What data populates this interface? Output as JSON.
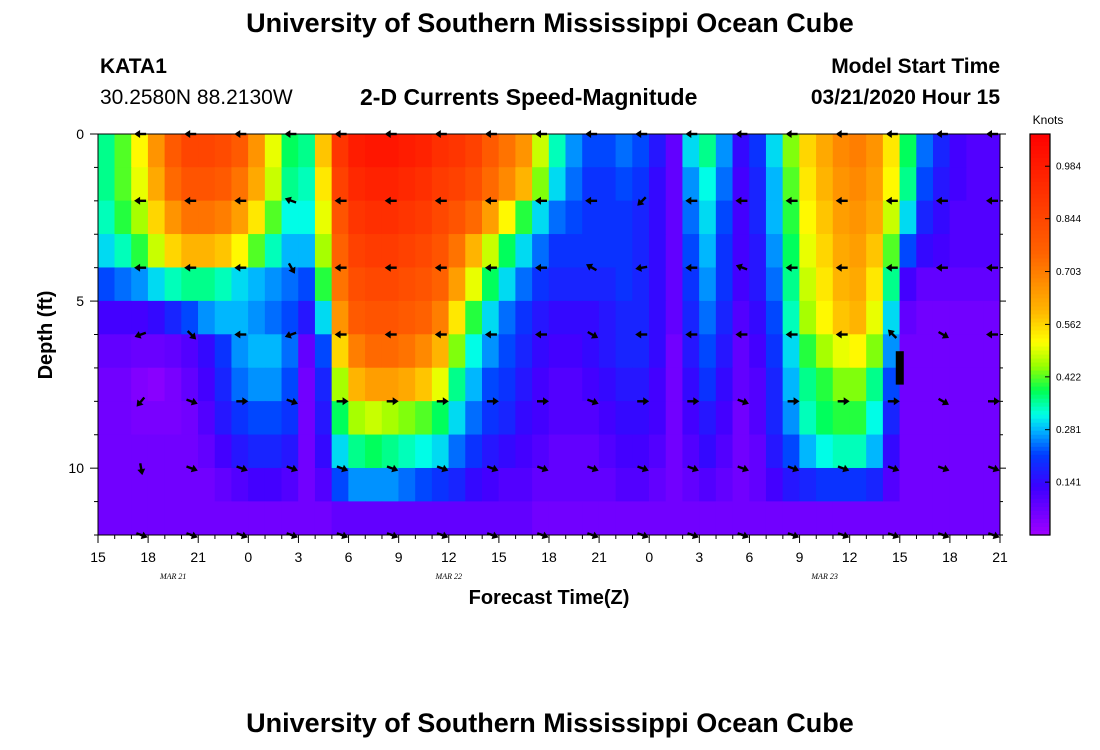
{
  "page": {
    "title_top": "University of Southern Mississippi Ocean Cube",
    "title_bottom": "University of Southern Mississippi Ocean Cube",
    "station": "KATA1",
    "coords": "30.2580N 88.2130W",
    "subtitle": "2-D Currents Speed-Magnitude",
    "model_start_label": "Model Start Time",
    "model_start_value": "03/21/2020 Hour 15"
  },
  "chart_data": {
    "type": "heatmap",
    "title": "2-D Currents Speed-Magnitude",
    "xlabel": "Forecast Time(Z)",
    "ylabel": "Depth (ft)",
    "x_range_hours": [
      0,
      54
    ],
    "y_range_ft": [
      0,
      12
    ],
    "x_ticks": [
      {
        "h": 0,
        "label": "15"
      },
      {
        "h": 3,
        "label": "18"
      },
      {
        "h": 6,
        "label": "21"
      },
      {
        "h": 9,
        "label": "0"
      },
      {
        "h": 12,
        "label": "3"
      },
      {
        "h": 15,
        "label": "6"
      },
      {
        "h": 18,
        "label": "9"
      },
      {
        "h": 21,
        "label": "12"
      },
      {
        "h": 24,
        "label": "15"
      },
      {
        "h": 27,
        "label": "18"
      },
      {
        "h": 30,
        "label": "21"
      },
      {
        "h": 33,
        "label": "0"
      },
      {
        "h": 36,
        "label": "3"
      },
      {
        "h": 39,
        "label": "6"
      },
      {
        "h": 42,
        "label": "9"
      },
      {
        "h": 45,
        "label": "12"
      },
      {
        "h": 48,
        "label": "15"
      },
      {
        "h": 51,
        "label": "18"
      },
      {
        "h": 54,
        "label": "21"
      }
    ],
    "date_labels": [
      {
        "h": 4.5,
        "label": "MAR 21"
      },
      {
        "h": 21,
        "label": "MAR 22"
      },
      {
        "h": 43.5,
        "label": "MAR 23"
      }
    ],
    "y_ticks": [
      {
        "v": 0,
        "label": "0"
      },
      {
        "v": 5,
        "label": "5"
      },
      {
        "v": 10,
        "label": "10"
      }
    ],
    "colorbar": {
      "title": "Knots",
      "range": [
        0.0,
        1.07
      ],
      "tick_values": [
        0.141,
        0.281,
        0.422,
        0.562,
        0.703,
        0.844,
        0.984
      ],
      "tick_labels": [
        "0.141",
        "0.281",
        "0.422",
        "0.562",
        "0.703",
        "0.844",
        "0.984"
      ]
    },
    "column_hours": [
      0,
      1,
      2,
      3,
      4,
      5,
      6,
      7,
      8,
      9,
      10,
      11,
      12,
      13,
      14,
      15,
      16,
      17,
      18,
      19,
      20,
      21,
      22,
      23,
      24,
      25,
      26,
      27,
      28,
      29,
      30,
      31,
      32,
      33,
      34,
      35,
      36,
      37,
      38,
      39,
      40,
      41,
      42,
      43,
      44,
      45,
      46,
      47,
      48,
      49,
      50,
      51,
      52,
      53
    ],
    "row_depths_ft": [
      0.5,
      1.5,
      2.5,
      3.5,
      4.5,
      5.5,
      6.5,
      7.5,
      8.5,
      9.5,
      10.5,
      11.5
    ],
    "speed_knots": [
      [
        0.36,
        0.42,
        0.52,
        0.66,
        0.78,
        0.85,
        0.85,
        0.83,
        0.78,
        0.66,
        0.5,
        0.38,
        0.36,
        0.58,
        0.9,
        0.98,
        1.0,
        1.0,
        0.98,
        0.96,
        0.92,
        0.9,
        0.86,
        0.78,
        0.72,
        0.66,
        0.48,
        0.34,
        0.26,
        0.22,
        0.22,
        0.24,
        0.22,
        0.16,
        0.08,
        0.3,
        0.36,
        0.26,
        0.14,
        0.2,
        0.3,
        0.44,
        0.56,
        0.62,
        0.68,
        0.7,
        0.66,
        0.54,
        0.38,
        0.24,
        0.18,
        0.12,
        0.1,
        0.1
      ],
      [
        0.36,
        0.42,
        0.5,
        0.62,
        0.74,
        0.8,
        0.8,
        0.78,
        0.72,
        0.62,
        0.48,
        0.36,
        0.34,
        0.54,
        0.86,
        0.94,
        0.96,
        0.96,
        0.94,
        0.92,
        0.88,
        0.86,
        0.82,
        0.74,
        0.68,
        0.6,
        0.44,
        0.3,
        0.24,
        0.2,
        0.2,
        0.22,
        0.2,
        0.14,
        0.08,
        0.26,
        0.32,
        0.24,
        0.12,
        0.18,
        0.28,
        0.42,
        0.54,
        0.6,
        0.66,
        0.68,
        0.64,
        0.52,
        0.36,
        0.22,
        0.16,
        0.12,
        0.1,
        0.1
      ],
      [
        0.34,
        0.4,
        0.46,
        0.56,
        0.66,
        0.72,
        0.72,
        0.7,
        0.64,
        0.54,
        0.42,
        0.32,
        0.32,
        0.5,
        0.8,
        0.9,
        0.92,
        0.92,
        0.9,
        0.88,
        0.84,
        0.8,
        0.74,
        0.64,
        0.52,
        0.4,
        0.3,
        0.24,
        0.22,
        0.2,
        0.2,
        0.2,
        0.18,
        0.14,
        0.08,
        0.24,
        0.3,
        0.22,
        0.12,
        0.18,
        0.28,
        0.4,
        0.52,
        0.58,
        0.64,
        0.66,
        0.62,
        0.48,
        0.3,
        0.18,
        0.14,
        0.1,
        0.1,
        0.1
      ],
      [
        0.3,
        0.34,
        0.4,
        0.48,
        0.56,
        0.6,
        0.6,
        0.58,
        0.52,
        0.42,
        0.34,
        0.28,
        0.28,
        0.46,
        0.76,
        0.86,
        0.88,
        0.88,
        0.86,
        0.84,
        0.8,
        0.72,
        0.6,
        0.48,
        0.38,
        0.3,
        0.24,
        0.2,
        0.2,
        0.2,
        0.2,
        0.2,
        0.18,
        0.14,
        0.08,
        0.22,
        0.28,
        0.2,
        0.12,
        0.16,
        0.26,
        0.38,
        0.5,
        0.56,
        0.62,
        0.64,
        0.58,
        0.42,
        0.22,
        0.14,
        0.12,
        0.1,
        0.1,
        0.1
      ],
      [
        0.22,
        0.24,
        0.26,
        0.3,
        0.34,
        0.36,
        0.36,
        0.34,
        0.3,
        0.28,
        0.26,
        0.24,
        0.22,
        0.4,
        0.72,
        0.82,
        0.84,
        0.84,
        0.82,
        0.8,
        0.76,
        0.64,
        0.5,
        0.38,
        0.3,
        0.24,
        0.2,
        0.18,
        0.18,
        0.18,
        0.18,
        0.2,
        0.18,
        0.14,
        0.08,
        0.2,
        0.26,
        0.2,
        0.12,
        0.16,
        0.24,
        0.36,
        0.48,
        0.54,
        0.6,
        0.62,
        0.54,
        0.36,
        0.12,
        0.08,
        0.08,
        0.08,
        0.08,
        0.08
      ],
      [
        0.12,
        0.12,
        0.12,
        0.14,
        0.18,
        0.22,
        0.26,
        0.28,
        0.28,
        0.26,
        0.24,
        0.22,
        0.16,
        0.3,
        0.66,
        0.78,
        0.8,
        0.8,
        0.78,
        0.76,
        0.7,
        0.54,
        0.4,
        0.3,
        0.24,
        0.2,
        0.16,
        0.14,
        0.14,
        0.14,
        0.16,
        0.18,
        0.18,
        0.14,
        0.08,
        0.18,
        0.24,
        0.18,
        0.1,
        0.14,
        0.22,
        0.34,
        0.46,
        0.52,
        0.58,
        0.6,
        0.5,
        0.3,
        0.08,
        0.06,
        0.06,
        0.06,
        0.06,
        0.06
      ],
      [
        0.08,
        0.08,
        0.07,
        0.07,
        0.08,
        0.1,
        0.14,
        0.2,
        0.26,
        0.28,
        0.28,
        0.24,
        0.08,
        0.22,
        0.56,
        0.7,
        0.74,
        0.74,
        0.72,
        0.68,
        0.6,
        0.44,
        0.32,
        0.26,
        0.22,
        0.18,
        0.14,
        0.12,
        0.12,
        0.14,
        0.16,
        0.18,
        0.18,
        0.14,
        0.06,
        0.16,
        0.22,
        0.16,
        0.08,
        0.12,
        0.2,
        0.3,
        0.4,
        0.46,
        0.5,
        0.52,
        0.44,
        0.26,
        0.06,
        0.06,
        0.06,
        0.06,
        0.06,
        0.06
      ],
      [
        0.06,
        0.06,
        0.04,
        0.03,
        0.05,
        0.08,
        0.12,
        0.18,
        0.24,
        0.26,
        0.26,
        0.22,
        0.06,
        0.18,
        0.46,
        0.6,
        0.64,
        0.64,
        0.62,
        0.58,
        0.5,
        0.36,
        0.28,
        0.22,
        0.2,
        0.16,
        0.12,
        0.1,
        0.1,
        0.12,
        0.14,
        0.16,
        0.16,
        0.12,
        0.06,
        0.14,
        0.2,
        0.14,
        0.08,
        0.1,
        0.18,
        0.28,
        0.36,
        0.4,
        0.44,
        0.44,
        0.36,
        0.22,
        0.06,
        0.06,
        0.06,
        0.06,
        0.06,
        0.06
      ],
      [
        0.06,
        0.06,
        0.05,
        0.05,
        0.05,
        0.06,
        0.1,
        0.16,
        0.2,
        0.22,
        0.22,
        0.2,
        0.06,
        0.16,
        0.38,
        0.46,
        0.48,
        0.46,
        0.44,
        0.42,
        0.38,
        0.3,
        0.24,
        0.2,
        0.18,
        0.14,
        0.12,
        0.1,
        0.1,
        0.1,
        0.12,
        0.14,
        0.14,
        0.12,
        0.06,
        0.12,
        0.16,
        0.12,
        0.06,
        0.1,
        0.18,
        0.26,
        0.34,
        0.38,
        0.4,
        0.4,
        0.32,
        0.18,
        0.06,
        0.06,
        0.06,
        0.06,
        0.06,
        0.06
      ],
      [
        0.06,
        0.06,
        0.06,
        0.06,
        0.06,
        0.06,
        0.08,
        0.12,
        0.16,
        0.18,
        0.18,
        0.16,
        0.06,
        0.14,
        0.3,
        0.36,
        0.38,
        0.36,
        0.34,
        0.32,
        0.3,
        0.24,
        0.2,
        0.16,
        0.14,
        0.12,
        0.1,
        0.08,
        0.08,
        0.08,
        0.1,
        0.12,
        0.12,
        0.1,
        0.06,
        0.1,
        0.14,
        0.1,
        0.06,
        0.08,
        0.16,
        0.22,
        0.28,
        0.32,
        0.34,
        0.34,
        0.28,
        0.14,
        0.06,
        0.06,
        0.06,
        0.06,
        0.06,
        0.06
      ],
      [
        0.06,
        0.06,
        0.06,
        0.06,
        0.06,
        0.06,
        0.06,
        0.08,
        0.1,
        0.12,
        0.12,
        0.1,
        0.06,
        0.1,
        0.22,
        0.26,
        0.26,
        0.26,
        0.24,
        0.22,
        0.2,
        0.18,
        0.14,
        0.12,
        0.1,
        0.1,
        0.08,
        0.08,
        0.08,
        0.08,
        0.08,
        0.1,
        0.1,
        0.08,
        0.06,
        0.08,
        0.1,
        0.08,
        0.06,
        0.08,
        0.12,
        0.16,
        0.18,
        0.2,
        0.2,
        0.2,
        0.18,
        0.1,
        0.06,
        0.06,
        0.06,
        0.06,
        0.06,
        0.06
      ],
      [
        0.06,
        0.06,
        0.06,
        0.06,
        0.06,
        0.06,
        0.06,
        0.06,
        0.06,
        0.06,
        0.06,
        0.06,
        0.06,
        0.06,
        0.08,
        0.08,
        0.08,
        0.08,
        0.08,
        0.08,
        0.08,
        0.08,
        0.08,
        0.08,
        0.08,
        0.08,
        0.06,
        0.06,
        0.06,
        0.06,
        0.06,
        0.06,
        0.06,
        0.06,
        0.06,
        0.06,
        0.06,
        0.06,
        0.06,
        0.06,
        0.06,
        0.06,
        0.06,
        0.06,
        0.06,
        0.06,
        0.06,
        0.06,
        0.06,
        0.06,
        0.06,
        0.06,
        0.06,
        0.06
      ]
    ],
    "vector_hours": [
      3,
      6,
      9,
      12,
      15,
      18,
      21,
      24,
      27,
      30,
      33,
      36,
      39,
      42,
      45,
      48,
      51,
      54
    ],
    "vector_depths_ft": [
      0,
      2,
      4,
      6,
      8,
      10,
      12
    ],
    "vector_direction_deg": [
      [
        180,
        180,
        180,
        180,
        180,
        180,
        180,
        180,
        180,
        180,
        180,
        180,
        180,
        180,
        180,
        180,
        180,
        180
      ],
      [
        180,
        180,
        180,
        200,
        180,
        180,
        180,
        180,
        180,
        180,
        135,
        180,
        180,
        180,
        180,
        180,
        180,
        180
      ],
      [
        180,
        180,
        180,
        60,
        180,
        180,
        180,
        180,
        180,
        210,
        170,
        180,
        200,
        180,
        180,
        180,
        180,
        180
      ],
      [
        160,
        45,
        180,
        160,
        180,
        180,
        180,
        180,
        180,
        30,
        180,
        180,
        180,
        180,
        180,
        225,
        30,
        180
      ],
      [
        130,
        20,
        0,
        20,
        0,
        0,
        0,
        0,
        0,
        20,
        0,
        0,
        20,
        0,
        0,
        0,
        30,
        0
      ],
      [
        80,
        20,
        20,
        20,
        20,
        20,
        20,
        20,
        20,
        20,
        20,
        20,
        20,
        20,
        20,
        20,
        20,
        20
      ],
      [
        20,
        20,
        20,
        20,
        20,
        20,
        20,
        20,
        20,
        20,
        20,
        20,
        20,
        20,
        20,
        20,
        20,
        20
      ]
    ]
  }
}
